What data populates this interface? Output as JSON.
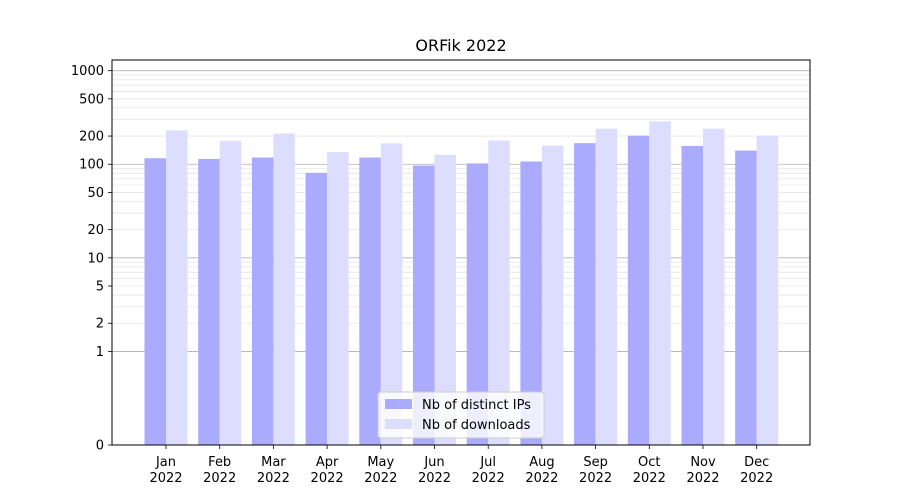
{
  "chart_data": {
    "type": "bar",
    "title": "ORFik 2022",
    "xlabel": "",
    "ylabel": "",
    "yscale": "symlog",
    "ylim": [
      0,
      1300
    ],
    "yticks": [
      0,
      1,
      2,
      5,
      10,
      20,
      50,
      100,
      200,
      500,
      1000
    ],
    "grid": true,
    "legend_position": "lower center",
    "categories": [
      [
        "Jan",
        "2022"
      ],
      [
        "Feb",
        "2022"
      ],
      [
        "Mar",
        "2022"
      ],
      [
        "Apr",
        "2022"
      ],
      [
        "May",
        "2022"
      ],
      [
        "Jun",
        "2022"
      ],
      [
        "Jul",
        "2022"
      ],
      [
        "Aug",
        "2022"
      ],
      [
        "Sep",
        "2022"
      ],
      [
        "Oct",
        "2022"
      ],
      [
        "Nov",
        "2022"
      ],
      [
        "Dec",
        "2022"
      ]
    ],
    "series": [
      {
        "name": "Nb of distinct IPs",
        "color": "#aaaaff",
        "values": [
          116,
          114,
          118,
          81,
          118,
          97,
          102,
          107,
          168,
          202,
          157,
          140
        ]
      },
      {
        "name": "Nb of downloads",
        "color": "#ddddff",
        "values": [
          230,
          178,
          213,
          135,
          167,
          126,
          180,
          158,
          240,
          287,
          240,
          203
        ]
      }
    ]
  }
}
